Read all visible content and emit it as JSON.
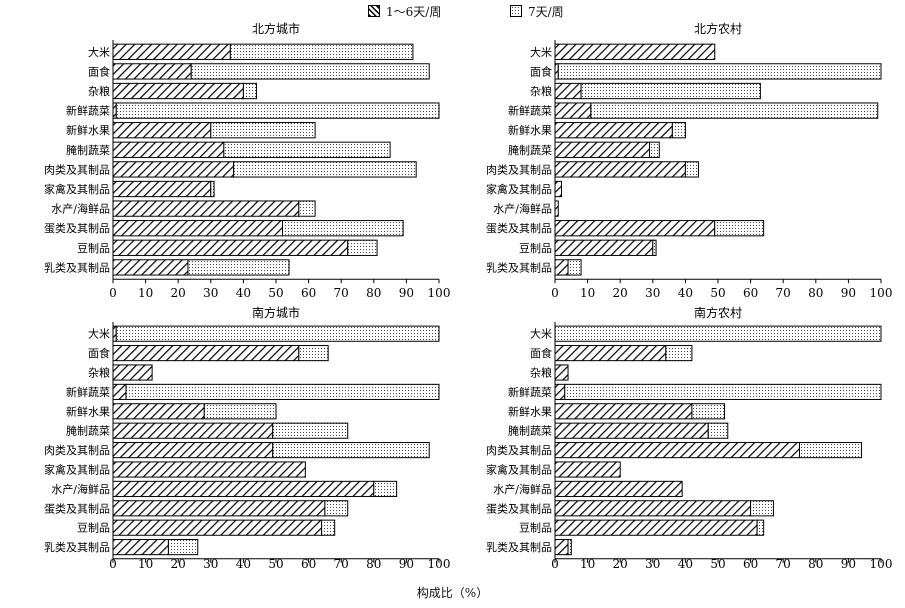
{
  "legend": {
    "series1": "1～6天/周",
    "series2": "7天/周"
  },
  "shared_xlabel": "构成比（%）",
  "chart_data": [
    {
      "type": "bar",
      "stacked": true,
      "orientation": "horizontal",
      "title": "北方城市",
      "categories": [
        "大米",
        "面食",
        "杂粮",
        "新鲜蔬菜",
        "新鲜水果",
        "腌制蔬菜",
        "肉类及其制品",
        "家禽及其制品",
        "水产/海鲜品",
        "蛋类及其制品",
        "豆制品",
        "乳类及其制品"
      ],
      "series": [
        {
          "name": "1～6天/周",
          "values": [
            36,
            24,
            40,
            1,
            30,
            34,
            37,
            30,
            57,
            52,
            72,
            23
          ]
        },
        {
          "name": "7天/周",
          "values": [
            56,
            73,
            4,
            99,
            32,
            51,
            56,
            1,
            5,
            37,
            9,
            31
          ]
        }
      ],
      "xlim": [
        0,
        100
      ],
      "xticks": [
        0,
        10,
        20,
        30,
        40,
        50,
        60,
        70,
        80,
        90,
        100
      ]
    },
    {
      "type": "bar",
      "stacked": true,
      "orientation": "horizontal",
      "title": "北方农村",
      "categories": [
        "大米",
        "面食",
        "杂粮",
        "新鲜蔬菜",
        "新鲜水果",
        "腌制蔬菜",
        "肉类及其制品",
        "家禽及其制品",
        "水产/海鲜品",
        "蛋类及其制品",
        "豆制品",
        "乳类及其制品"
      ],
      "series": [
        {
          "name": "1～6天/周",
          "values": [
            49,
            1,
            8,
            11,
            36,
            29,
            40,
            2,
            1,
            49,
            30,
            4
          ]
        },
        {
          "name": "7天/周",
          "values": [
            0,
            99,
            55,
            88,
            4,
            3,
            4,
            0,
            0,
            15,
            1,
            4
          ]
        }
      ],
      "xlim": [
        0,
        100
      ],
      "xticks": [
        0,
        10,
        20,
        30,
        40,
        50,
        60,
        70,
        80,
        90,
        100
      ]
    },
    {
      "type": "bar",
      "stacked": true,
      "orientation": "horizontal",
      "title": "南方城市",
      "categories": [
        "大米",
        "面食",
        "杂粮",
        "新鲜蔬菜",
        "新鲜水果",
        "腌制蔬菜",
        "肉类及其制品",
        "家禽及其制品",
        "水产/海鲜品",
        "蛋类及其制品",
        "豆制品",
        "乳类及其制品"
      ],
      "series": [
        {
          "name": "1～6天/周",
          "values": [
            1,
            57,
            12,
            4,
            28,
            49,
            49,
            59,
            80,
            65,
            64,
            17
          ]
        },
        {
          "name": "7天/周",
          "values": [
            99,
            9,
            0,
            96,
            22,
            23,
            48,
            0,
            7,
            7,
            4,
            9
          ]
        }
      ],
      "xlim": [
        0,
        100
      ],
      "xticks": [
        0,
        10,
        20,
        30,
        40,
        50,
        60,
        70,
        80,
        90,
        100
      ]
    },
    {
      "type": "bar",
      "stacked": true,
      "orientation": "horizontal",
      "title": "南方农村",
      "categories": [
        "大米",
        "面食",
        "杂粮",
        "新鲜蔬菜",
        "新鲜水果",
        "腌制蔬菜",
        "肉类及其制品",
        "家禽及其制品",
        "水产/海鲜品",
        "蛋类及其制品",
        "豆制品",
        "乳类及其制品"
      ],
      "series": [
        {
          "name": "1～6天/周",
          "values": [
            0,
            34,
            4,
            3,
            42,
            47,
            75,
            20,
            39,
            60,
            62,
            4
          ]
        },
        {
          "name": "7天/周",
          "values": [
            100,
            8,
            0,
            97,
            10,
            6,
            19,
            0,
            0,
            7,
            2,
            1
          ]
        }
      ],
      "xlim": [
        0,
        100
      ],
      "xticks": [
        0,
        10,
        20,
        30,
        40,
        50,
        60,
        70,
        80,
        90,
        100
      ]
    }
  ]
}
